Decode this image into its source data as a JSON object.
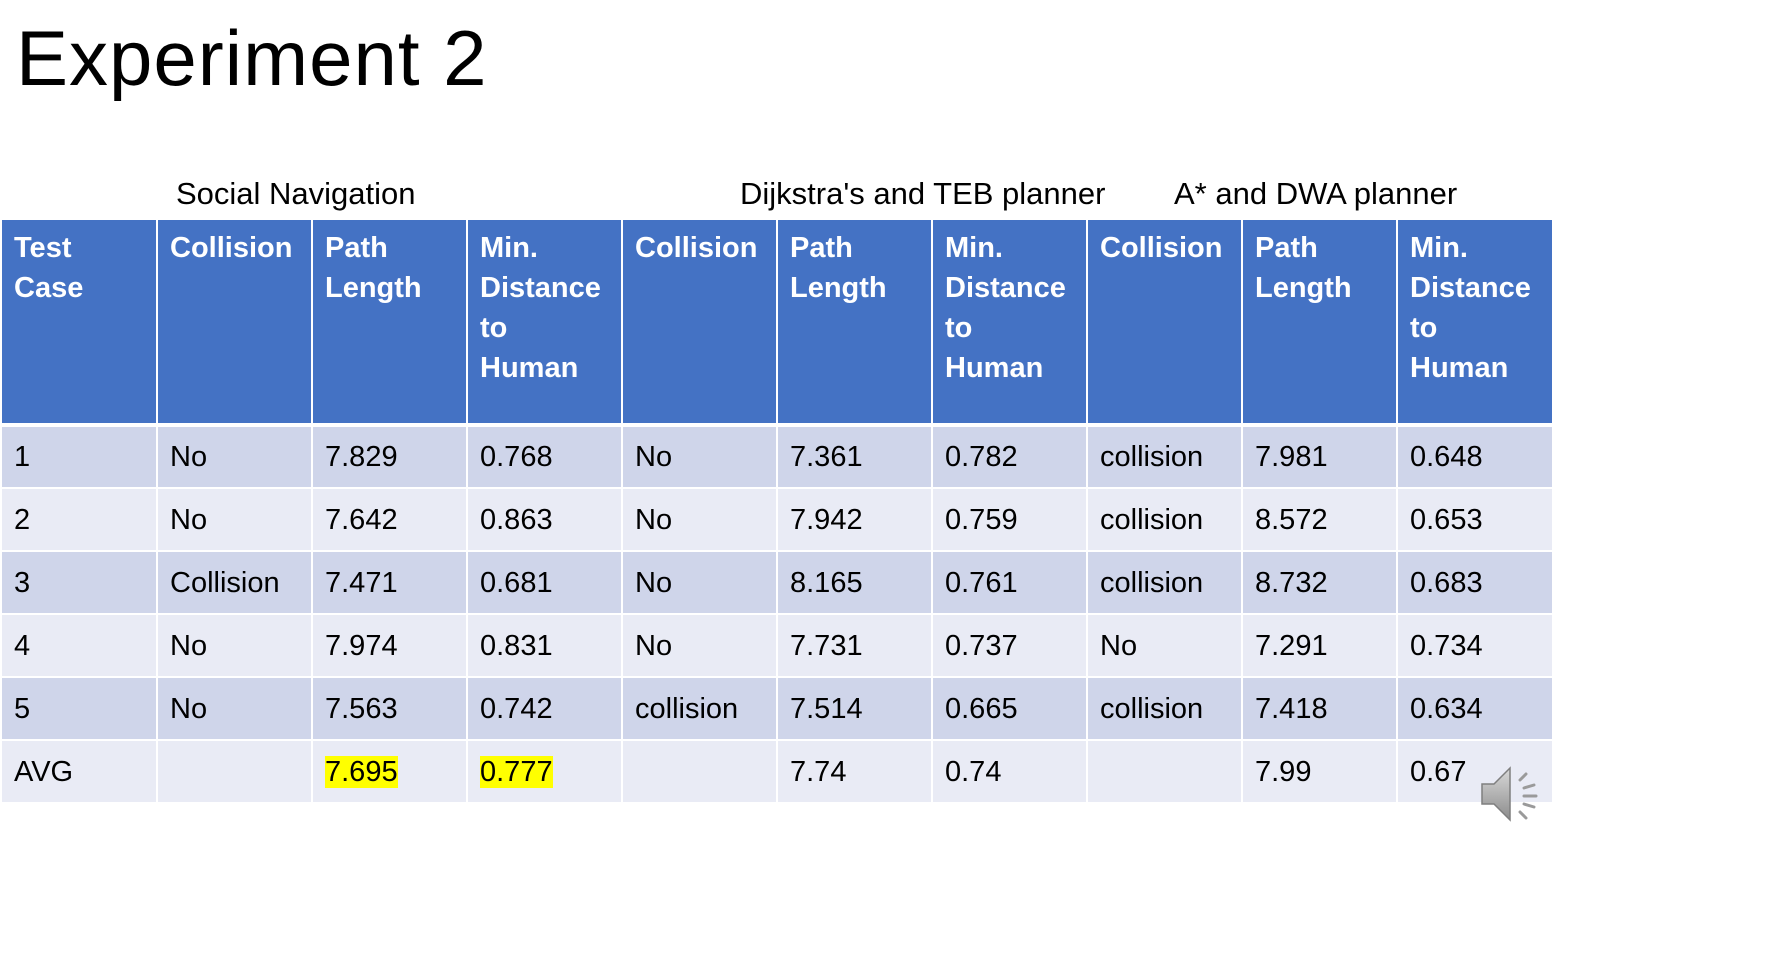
{
  "slide": {
    "title": "Experiment 2"
  },
  "groups": {
    "social": "Social Navigation",
    "dijkstra": "Dijkstra's and TEB planner",
    "astar": "A* and DWA planner"
  },
  "table": {
    "headers": {
      "test_case": "Test Case",
      "collision": "Collision",
      "path_length_1": "Path",
      "path_length_2": "Length",
      "min_dist_1": "Min.",
      "min_dist_2": "Distance",
      "min_dist_3": "to",
      "min_dist_4": "Human"
    },
    "rows": [
      {
        "case": "1",
        "sn_collision": "No",
        "sn_path": "7.829",
        "sn_min": "0.768",
        "dt_collision": "No",
        "dt_path": "7.361",
        "dt_min": "0.782",
        "ad_collision": "collision",
        "ad_path": "7.981",
        "ad_min": "0.648"
      },
      {
        "case": "2",
        "sn_collision": "No",
        "sn_path": "7.642",
        "sn_min": "0.863",
        "dt_collision": "No",
        "dt_path": "7.942",
        "dt_min": "0.759",
        "ad_collision": "collision",
        "ad_path": "8.572",
        "ad_min": "0.653"
      },
      {
        "case": "3",
        "sn_collision": "Collision",
        "sn_path": "7.471",
        "sn_min": "0.681",
        "dt_collision": "No",
        "dt_path": "8.165",
        "dt_min": "0.761",
        "ad_collision": "collision",
        "ad_path": "8.732",
        "ad_min": "0.683"
      },
      {
        "case": "4",
        "sn_collision": "No",
        "sn_path": "7.974",
        "sn_min": "0.831",
        "dt_collision": "No",
        "dt_path": "7.731",
        "dt_min": "0.737",
        "ad_collision": "No",
        "ad_path": "7.291",
        "ad_min": "0.734"
      },
      {
        "case": "5",
        "sn_collision": "No",
        "sn_path": "7.563",
        "sn_min": "0.742",
        "dt_collision": "collision",
        "dt_path": "7.514",
        "dt_min": "0.665",
        "ad_collision": "collision",
        "ad_path": "7.418",
        "ad_min": "0.634"
      }
    ],
    "avg": {
      "label": "AVG",
      "sn_path": "7.695",
      "sn_min": "0.777",
      "dt_path": "7.74",
      "dt_min": "0.74",
      "ad_path": "7.99",
      "ad_min": "0.67"
    }
  },
  "colors": {
    "header_bg": "#4472c4",
    "row_odd_bg": "#cfd5ea",
    "row_even_bg": "#e9ebf5",
    "highlight": "#ffff00"
  },
  "icons": {
    "audio": "speaker-icon"
  }
}
